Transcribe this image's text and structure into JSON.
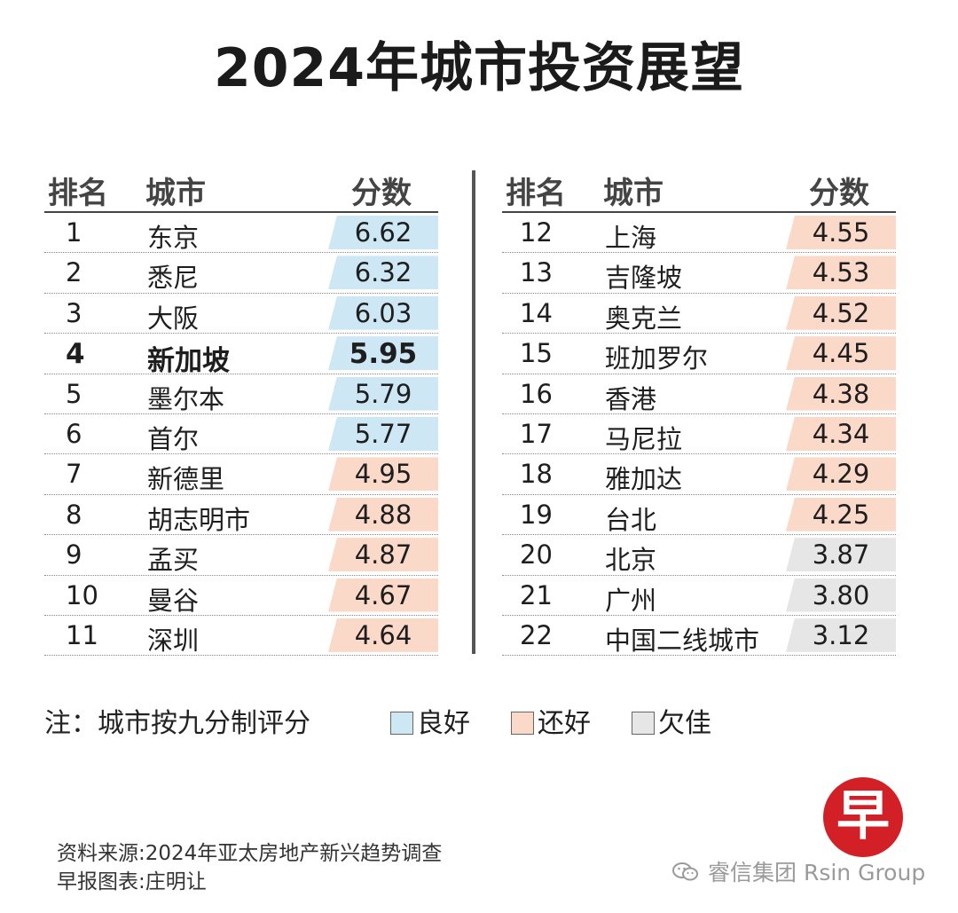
{
  "title": "2024年城市投资展望",
  "headers": {
    "rank": "排名",
    "city": "城市",
    "score": "分数"
  },
  "colors": {
    "good": "#cde7f5",
    "ok": "#fbd9c9",
    "poor": "#e6e6e6"
  },
  "left_rows": [
    {
      "rank": "1",
      "city": "东京",
      "score": "6.62",
      "tier": "good"
    },
    {
      "rank": "2",
      "city": "悉尼",
      "score": "6.32",
      "tier": "good"
    },
    {
      "rank": "3",
      "city": "大阪",
      "score": "6.03",
      "tier": "good"
    },
    {
      "rank": "4",
      "city": "新加坡",
      "score": "5.95",
      "tier": "good"
    },
    {
      "rank": "5",
      "city": "墨尔本",
      "score": "5.79",
      "tier": "good"
    },
    {
      "rank": "6",
      "city": "首尔",
      "score": "5.77",
      "tier": "good"
    },
    {
      "rank": "7",
      "city": "新德里",
      "score": "4.95",
      "tier": "ok"
    },
    {
      "rank": "8",
      "city": "胡志明市",
      "score": "4.88",
      "tier": "ok"
    },
    {
      "rank": "9",
      "city": "孟买",
      "score": "4.87",
      "tier": "ok"
    },
    {
      "rank": "10",
      "city": "曼谷",
      "score": "4.67",
      "tier": "ok"
    },
    {
      "rank": "11",
      "city": "深圳",
      "score": "4.64",
      "tier": "ok"
    }
  ],
  "right_rows": [
    {
      "rank": "12",
      "city": "上海",
      "score": "4.55",
      "tier": "ok"
    },
    {
      "rank": "13",
      "city": "吉隆坡",
      "score": "4.53",
      "tier": "ok"
    },
    {
      "rank": "14",
      "city": "奥克兰",
      "score": "4.52",
      "tier": "ok"
    },
    {
      "rank": "15",
      "city": "班加罗尔",
      "score": "4.45",
      "tier": "ok"
    },
    {
      "rank": "16",
      "city": "香港",
      "score": "4.38",
      "tier": "ok"
    },
    {
      "rank": "17",
      "city": "马尼拉",
      "score": "4.34",
      "tier": "ok"
    },
    {
      "rank": "18",
      "city": "雅加达",
      "score": "4.29",
      "tier": "ok"
    },
    {
      "rank": "19",
      "city": "台北",
      "score": "4.25",
      "tier": "ok"
    },
    {
      "rank": "20",
      "city": "北京",
      "score": "3.87",
      "tier": "poor"
    },
    {
      "rank": "21",
      "city": "广州",
      "score": "3.80",
      "tier": "poor"
    },
    {
      "rank": "22",
      "city": "中国二线城市",
      "score": "3.12",
      "tier": "poor"
    }
  ],
  "note": "注：城市按九分制评分",
  "legend": {
    "good": "良好",
    "ok": "还好",
    "poor": "欠佳"
  },
  "source_line": "资料来源:2024年亚太房地产新兴趋势调查",
  "credit_line": "早报图表:庄明让",
  "logo_char": "早",
  "watermark": "睿信集团 Rsin Group"
}
